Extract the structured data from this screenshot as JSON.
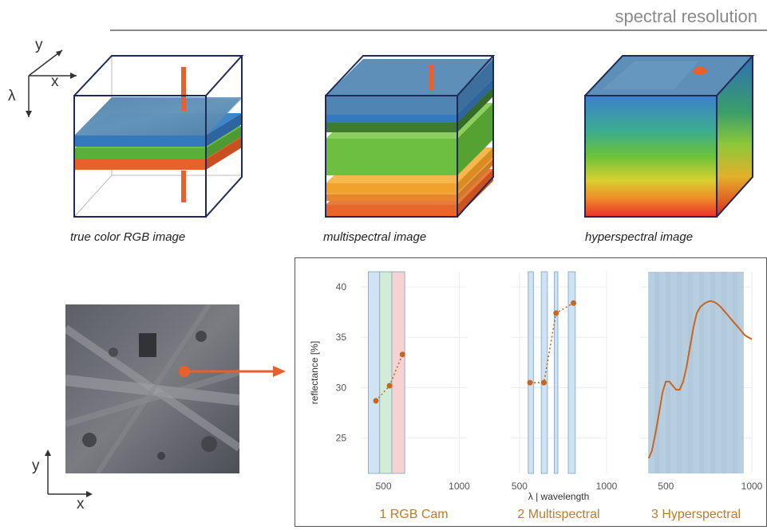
{
  "header": {
    "title": "spectral resolution"
  },
  "axes_icon": {
    "y": "y",
    "x": "x",
    "lambda": "λ"
  },
  "cubes": [
    {
      "caption": "true color RGB image"
    },
    {
      "caption": "multispectral image"
    },
    {
      "caption": "hyperspectral image"
    }
  ],
  "image_axes": {
    "y": "y",
    "x": "x"
  },
  "colors": {
    "accent": "#e8602c",
    "series": "#c9651f",
    "band_fill": "#cfe2f3",
    "band_stroke": "#8fb0c8",
    "panel_label": "#c07a2a"
  },
  "chart_data": {
    "ylabel": "reflectance [%]",
    "xlabel": "λ | wavelength",
    "ylim": [
      21.5,
      41.5
    ],
    "yticks": [
      25,
      30,
      35,
      40
    ],
    "panels": [
      {
        "label": "1 RGB Cam",
        "type": "line",
        "line_style": "dotted-with-markers",
        "xlim": [
          350,
          1050
        ],
        "xticks": [
          500,
          1000
        ],
        "bands": [
          {
            "from": 400,
            "to": 475,
            "color": "#cfe3f3"
          },
          {
            "from": 475,
            "to": 555,
            "color": "#d3ecd8"
          },
          {
            "from": 555,
            "to": 640,
            "color": "#f6d2d2"
          }
        ],
        "series": [
          {
            "x": [
              450,
              540,
              625
            ],
            "y": [
              28.7,
              30.2,
              33.3
            ]
          }
        ]
      },
      {
        "label": "2 Multispectral",
        "type": "line",
        "line_style": "dotted-with-markers",
        "xlim": [
          450,
          1000
        ],
        "xticks": [
          500,
          1000
        ],
        "bands": [
          {
            "from": 550,
            "to": 580,
            "color": "#cfe2f3"
          },
          {
            "from": 625,
            "to": 660,
            "color": "#cfe2f3"
          },
          {
            "from": 700,
            "to": 720,
            "color": "#cfe2f3"
          },
          {
            "from": 780,
            "to": 820,
            "color": "#cfe2f3"
          }
        ],
        "series": [
          {
            "x": [
              560,
              640,
              710,
              810
            ],
            "y": [
              30.5,
              30.5,
              37.4,
              38.4
            ]
          }
        ]
      },
      {
        "label": "3 Hyperspectral",
        "type": "line",
        "line_style": "solid",
        "xlim": [
          350,
          1000
        ],
        "xticks": [
          500,
          1000
        ],
        "bands_range": {
          "from": 400,
          "to": 950,
          "step": 5
        },
        "series": [
          {
            "x": [
              400,
              420,
              440,
              460,
              480,
              500,
              520,
              540,
              560,
              580,
              600,
              620,
              640,
              660,
              680,
              700,
              720,
              740,
              760,
              780,
              800,
              820,
              840,
              860,
              880,
              900,
              920,
              940,
              960,
              980,
              1000
            ],
            "y": [
              23.0,
              23.8,
              25.5,
              27.5,
              29.5,
              30.6,
              30.6,
              30.2,
              29.8,
              29.8,
              30.6,
              32.0,
              34.0,
              36.0,
              37.4,
              38.0,
              38.3,
              38.5,
              38.6,
              38.5,
              38.3,
              38.0,
              37.6,
              37.2,
              36.8,
              36.4,
              36.0,
              35.6,
              35.2,
              35.0,
              34.8
            ]
          }
        ]
      }
    ]
  }
}
